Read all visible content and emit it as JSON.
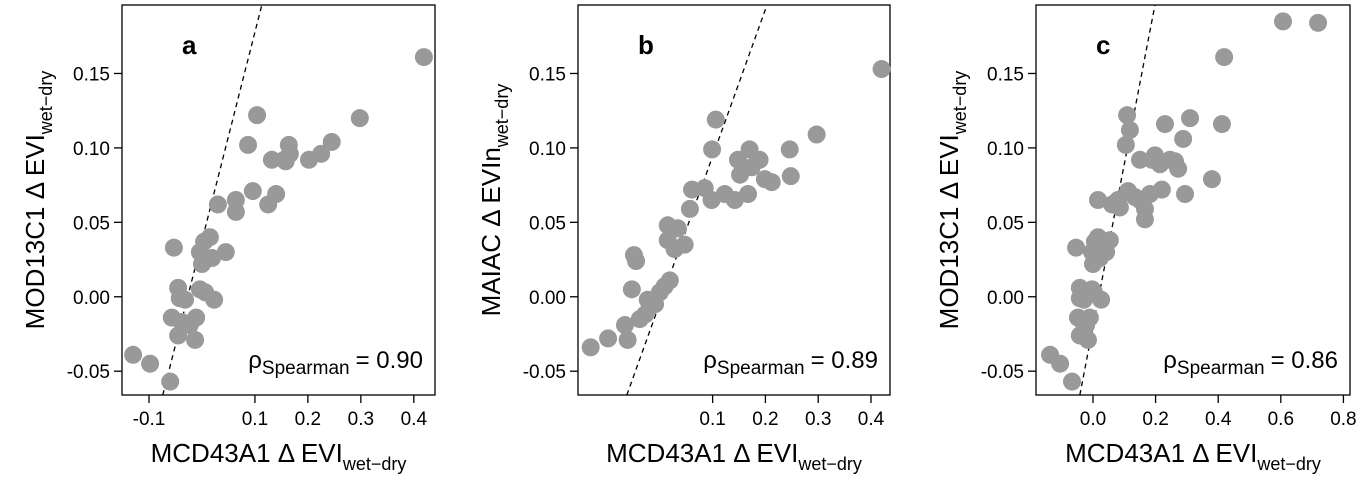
{
  "chart_data": [
    {
      "type": "scatter",
      "panel_label": "a",
      "xlabel": "MCD43A1 Δ EVI",
      "xlabel_sub": "wet−dry",
      "ylabel": "MOD13C1 Δ EVI",
      "ylabel_sub": "wet−dry",
      "annotation": {
        "symbol": "ρ",
        "sub": "Spearman",
        "text": "= 0.90"
      },
      "color": "#999999",
      "x": [
        -0.13,
        -0.098,
        -0.06,
        -0.053,
        -0.045,
        -0.057,
        -0.042,
        -0.038,
        -0.045,
        -0.023,
        -0.013,
        -0.011,
        -0.032,
        -0.004,
        0.006,
        0.0,
        -0.004,
        0.004,
        0.015,
        0.019,
        0.023,
        0.045,
        0.03,
        0.064,
        0.064,
        0.087,
        0.104,
        0.096,
        0.125,
        0.132,
        0.14,
        0.155,
        0.164,
        0.158,
        0.166,
        0.202,
        0.225,
        0.245,
        0.298,
        0.419
      ],
      "values": [
        -0.039,
        -0.045,
        -0.057,
        0.033,
        0.006,
        -0.014,
        -0.001,
        -0.017,
        -0.026,
        -0.019,
        -0.029,
        -0.014,
        -0.002,
        0.005,
        0.003,
        0.022,
        0.03,
        0.037,
        0.04,
        0.026,
        -0.002,
        0.03,
        0.062,
        0.065,
        0.057,
        0.102,
        0.122,
        0.071,
        0.062,
        0.092,
        0.069,
        0.092,
        0.102,
        0.091,
        0.096,
        0.092,
        0.096,
        0.104,
        0.12,
        0.161
      ],
      "reference_line": {
        "x": [
          -0.074,
          0.113
        ],
        "y": [
          -0.066,
          0.196
        ]
      },
      "xlim": [
        -0.151,
        0.44
      ],
      "ylim": [
        -0.066,
        0.196
      ],
      "xticks": [
        -0.1,
        0.1,
        0.2,
        0.3,
        0.4
      ],
      "yticks": [
        -0.05,
        {
          "value": 0,
          "label": "0.00"
        },
        0.05,
        {
          "value": 0.1,
          "label": "0.10"
        },
        0.15
      ]
    },
    {
      "type": "scatter",
      "panel_label": "b",
      "xlabel": "MCD43A1 Δ EVI",
      "xlabel_sub": "wet−dry",
      "ylabel": "MAIAC Δ EVIn",
      "ylabel_sub": "wet−dry",
      "annotation": {
        "symbol": "ρ",
        "sub": "Spearman",
        "text": "= 0.89"
      },
      "color": "#999999",
      "x": [
        -0.131,
        -0.098,
        -0.061,
        -0.066,
        -0.053,
        -0.049,
        -0.045,
        -0.038,
        -0.028,
        -0.023,
        -0.019,
        -0.009,
        0.0,
        0.009,
        0.019,
        0.015,
        0.028,
        0.015,
        0.034,
        0.047,
        0.057,
        0.061,
        0.085,
        0.099,
        0.106,
        0.098,
        0.123,
        0.142,
        0.152,
        0.148,
        0.17,
        0.167,
        0.174,
        0.189,
        0.199,
        0.212,
        0.248,
        0.246,
        0.297,
        0.42
      ],
      "values": [
        -0.034,
        -0.028,
        -0.029,
        -0.019,
        0.005,
        0.028,
        0.024,
        -0.015,
        -0.012,
        -0.002,
        -0.007,
        -0.005,
        0.003,
        0.007,
        0.011,
        0.038,
        0.032,
        0.048,
        0.046,
        0.035,
        0.059,
        0.072,
        0.073,
        0.099,
        0.119,
        0.065,
        0.069,
        0.065,
        0.082,
        0.092,
        0.099,
        0.069,
        0.087,
        0.092,
        0.079,
        0.077,
        0.081,
        0.099,
        0.109,
        0.153
      ],
      "reference_line": {
        "x": [
          -0.0625,
          0.203
        ],
        "y": [
          -0.066,
          0.196
        ]
      },
      "xlim": [
        -0.155,
        0.436
      ],
      "ylim": [
        -0.066,
        0.196
      ],
      "xticks": [
        0.1,
        0.2,
        0.3,
        0.4
      ],
      "yticks": [
        -0.05,
        {
          "value": 0,
          "label": "0.00"
        },
        0.05,
        {
          "value": 0.1,
          "label": "0.10"
        },
        0.15
      ]
    },
    {
      "type": "scatter",
      "panel_label": "c",
      "xlabel": "MCD43A1 Δ EVI",
      "xlabel_sub": "wet−dry",
      "ylabel": "MOD13C1 Δ EVI",
      "ylabel_sub": "wet−dry",
      "annotation": {
        "symbol": "ρ",
        "sub": "Spearman",
        "text": "= 0.86"
      },
      "color": "#999999",
      "x": [
        -0.137,
        -0.105,
        -0.067,
        -0.054,
        -0.042,
        -0.048,
        -0.042,
        -0.032,
        -0.042,
        -0.022,
        -0.016,
        -0.01,
        -0.029,
        -0.003,
        0.003,
        0.0,
        -0.003,
        0.006,
        0.016,
        0.022,
        0.026,
        0.042,
        0.054,
        0.016,
        0.061,
        0.08,
        0.086,
        0.105,
        0.109,
        0.118,
        0.112,
        0.134,
        0.15,
        0.166,
        0.15,
        0.166,
        0.182,
        0.188,
        0.198,
        0.214,
        0.22,
        0.23,
        0.246,
        0.262,
        0.272,
        0.288,
        0.294,
        0.31,
        0.38,
        0.412,
        0.419,
        0.607,
        0.719
      ],
      "values": [
        -0.039,
        -0.045,
        -0.057,
        0.033,
        0.006,
        -0.014,
        -0.001,
        -0.017,
        -0.026,
        -0.019,
        -0.029,
        -0.014,
        -0.002,
        0.005,
        0.003,
        0.022,
        0.03,
        0.037,
        0.04,
        0.026,
        -0.002,
        0.03,
        0.038,
        0.065,
        0.062,
        0.065,
        0.06,
        0.102,
        0.122,
        0.112,
        0.071,
        0.067,
        0.065,
        0.059,
        0.092,
        0.052,
        0.069,
        0.092,
        0.095,
        0.089,
        0.072,
        0.116,
        0.092,
        0.091,
        0.086,
        0.106,
        0.069,
        0.12,
        0.079,
        0.116,
        0.161,
        0.185,
        0.184
      ],
      "reference_line": {
        "x": [
          -0.042,
          0.198
        ],
        "y": [
          -0.066,
          0.196
        ]
      },
      "xlim": [
        -0.182,
        0.821
      ],
      "ylim": [
        -0.066,
        0.196
      ],
      "xticks": [
        {
          "value": 0,
          "label": "0.0"
        },
        0.2,
        0.4,
        0.6,
        0.8
      ],
      "yticks": [
        -0.05,
        {
          "value": 0,
          "label": "0.00"
        },
        0.05,
        {
          "value": 0.1,
          "label": "0.10"
        },
        0.15
      ]
    }
  ]
}
